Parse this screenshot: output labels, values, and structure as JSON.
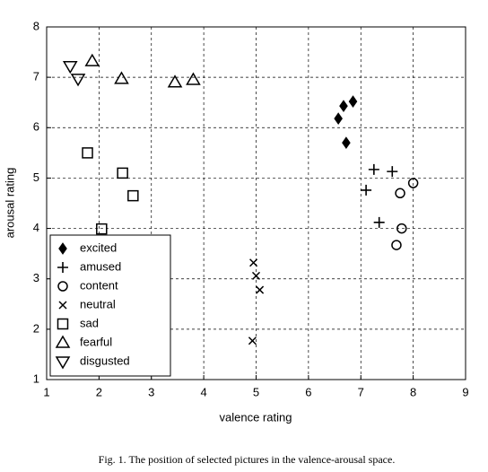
{
  "chart_data": {
    "type": "scatter",
    "xlabel": "valence rating",
    "ylabel": "arousal rating",
    "xlim": [
      1,
      9
    ],
    "ylim": [
      1,
      8
    ],
    "xticks": [
      1,
      2,
      3,
      4,
      5,
      6,
      7,
      8,
      9
    ],
    "yticks": [
      1,
      2,
      3,
      4,
      5,
      6,
      7,
      8
    ],
    "grid": true,
    "legend": "lower left",
    "series": [
      {
        "name": "excited",
        "color": "#000000",
        "marker": "diamond-filled",
        "x": [
          6.57,
          6.67,
          6.85,
          6.72
        ],
        "values": [
          6.18,
          6.43,
          6.52,
          5.7
        ]
      },
      {
        "name": "amused",
        "color": "#000000",
        "marker": "plus",
        "x": [
          7.25,
          7.6,
          7.1,
          7.35
        ],
        "values": [
          5.17,
          5.13,
          4.76,
          4.12
        ]
      },
      {
        "name": "content",
        "color": "#000000",
        "marker": "circle",
        "x": [
          8.0,
          7.75,
          7.78,
          7.68
        ],
        "values": [
          4.9,
          4.7,
          4.0,
          3.67
        ]
      },
      {
        "name": "neutral",
        "color": "#000000",
        "marker": "x",
        "x": [
          4.95,
          5.0,
          5.07,
          4.93
        ],
        "values": [
          3.32,
          3.06,
          2.78,
          1.77
        ]
      },
      {
        "name": "sad",
        "color": "#000000",
        "marker": "square",
        "x": [
          1.78,
          2.45,
          2.65,
          2.05
        ],
        "values": [
          5.5,
          5.1,
          4.65,
          3.99
        ]
      },
      {
        "name": "fearful",
        "color": "#000000",
        "marker": "triangle-up",
        "x": [
          1.87,
          2.43,
          3.45,
          3.8
        ],
        "values": [
          7.32,
          6.97,
          6.9,
          6.95
        ]
      },
      {
        "name": "disgusted",
        "color": "#000000",
        "marker": "triangle-down",
        "x": [
          1.45,
          1.6
        ],
        "values": [
          7.22,
          6.97
        ]
      }
    ],
    "caption": "Fig. 1. The position of selected pictures in the valence-arousal space."
  }
}
